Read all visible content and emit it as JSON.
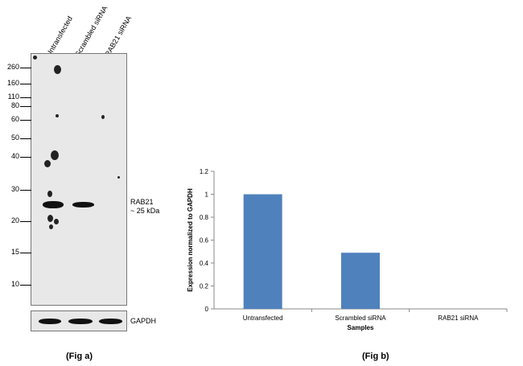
{
  "blot": {
    "lanes": [
      "Untransfected",
      "Scrambled siRNA",
      "RAB21 siRNA"
    ],
    "markers": [
      "260",
      "160",
      "110",
      "80",
      "60",
      "50",
      "40",
      "30",
      "20",
      "15",
      "10"
    ],
    "band_label_line1": "RAB21",
    "band_label_line2": "~ 25 kDa",
    "loading_label": "GAPDH"
  },
  "captions": {
    "fig_a": "(Fig a)",
    "fig_b": "(Fig b)"
  },
  "chart_data": {
    "type": "bar",
    "categories": [
      "Untransfected",
      "Scrambled siRNA",
      "RAB21 siRNA"
    ],
    "values": [
      1.0,
      0.49,
      0.0
    ],
    "xlabel": "Samples",
    "ylabel": "Expression  normalized to GAPDH",
    "ylim": [
      0,
      1.2
    ],
    "yticks": [
      "0",
      "0.2",
      "0.4",
      "0.6",
      "0.8",
      "1",
      "1.2"
    ],
    "bar_color": "#4f81bd",
    "grid": false,
    "legend": "none"
  }
}
